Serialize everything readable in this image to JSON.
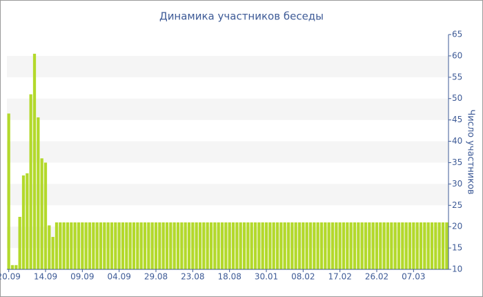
{
  "chart_data": {
    "type": "bar",
    "title": "Динамика участников беседы",
    "y_label": "Число участников",
    "categories": [
      "20.09",
      null,
      null,
      null,
      null,
      null,
      null,
      null,
      null,
      null,
      "14.09",
      null,
      null,
      null,
      null,
      null,
      null,
      null,
      null,
      null,
      "09.09",
      null,
      null,
      null,
      null,
      null,
      null,
      null,
      null,
      null,
      "04.09",
      null,
      null,
      null,
      null,
      null,
      null,
      null,
      null,
      null,
      "29.08",
      null,
      null,
      null,
      null,
      null,
      null,
      null,
      null,
      null,
      "23.08",
      null,
      null,
      null,
      null,
      null,
      null,
      null,
      null,
      null,
      "18.08",
      null,
      null,
      null,
      null,
      null,
      null,
      null,
      null,
      null,
      "30.01",
      null,
      null,
      null,
      null,
      null,
      null,
      null,
      null,
      null,
      "08.02",
      null,
      null,
      null,
      null,
      null,
      null,
      null,
      null,
      null,
      "17.02",
      null,
      null,
      null,
      null,
      null,
      null,
      null,
      null,
      null,
      "26.02",
      null,
      null,
      null,
      null,
      null,
      null,
      null,
      null,
      null,
      "07.03",
      null,
      null,
      null,
      null,
      null,
      null,
      null,
      null,
      null
    ],
    "values": [
      46.5,
      11,
      11,
      22.3,
      32,
      32.5,
      51,
      60.5,
      45.6,
      36,
      35,
      20.3,
      17.6,
      21,
      21,
      21,
      21,
      21,
      21,
      21,
      21,
      21,
      21,
      21,
      21,
      21,
      21,
      21,
      21,
      21,
      21,
      21,
      21,
      21,
      21,
      21,
      21,
      21,
      21,
      21,
      21,
      21,
      21,
      21,
      21,
      21,
      21,
      21,
      21,
      21,
      21,
      21,
      21,
      21,
      21,
      21,
      21,
      21,
      21,
      21,
      21,
      21,
      21,
      21,
      21,
      21,
      21,
      21,
      21,
      21,
      21,
      21,
      21,
      21,
      21,
      21,
      21,
      21,
      21,
      21,
      21,
      21,
      21,
      21,
      21,
      21,
      21,
      21,
      21,
      21,
      21,
      21,
      21,
      21,
      21,
      21,
      21,
      21,
      21,
      21,
      21,
      21,
      21,
      21,
      21,
      21,
      21,
      21,
      21,
      21,
      21,
      21,
      21,
      21,
      21,
      21,
      21,
      21,
      21,
      21
    ],
    "color": "#b3d92b",
    "ylim": [
      10,
      65
    ],
    "yticks": [
      10,
      15,
      20,
      25,
      30,
      35,
      40,
      45,
      50,
      55,
      60,
      65
    ],
    "grid": "bands",
    "y_axis_side": "right"
  }
}
